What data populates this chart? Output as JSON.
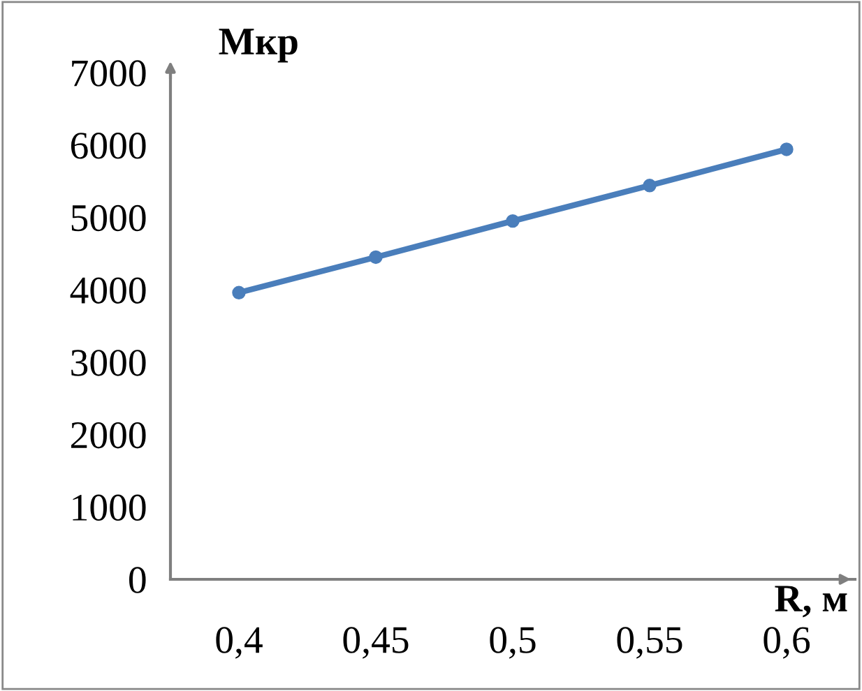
{
  "chart_data": {
    "type": "line",
    "xlabel": "R, м",
    "ylabel": "Мкр",
    "categories": [
      "0,4",
      "0,45",
      "0,5",
      "0,55",
      "0,6"
    ],
    "series": [
      {
        "color": "#4a7ebb",
        "values": [
          3960,
          4450,
          4950,
          5440,
          5940
        ]
      }
    ],
    "ylim": [
      0,
      7000
    ],
    "yticks": [
      0,
      1000,
      2000,
      3000,
      4000,
      5000,
      6000,
      7000
    ],
    "marker": "circle",
    "line_style": "solid",
    "grid": false,
    "legend": false
  }
}
